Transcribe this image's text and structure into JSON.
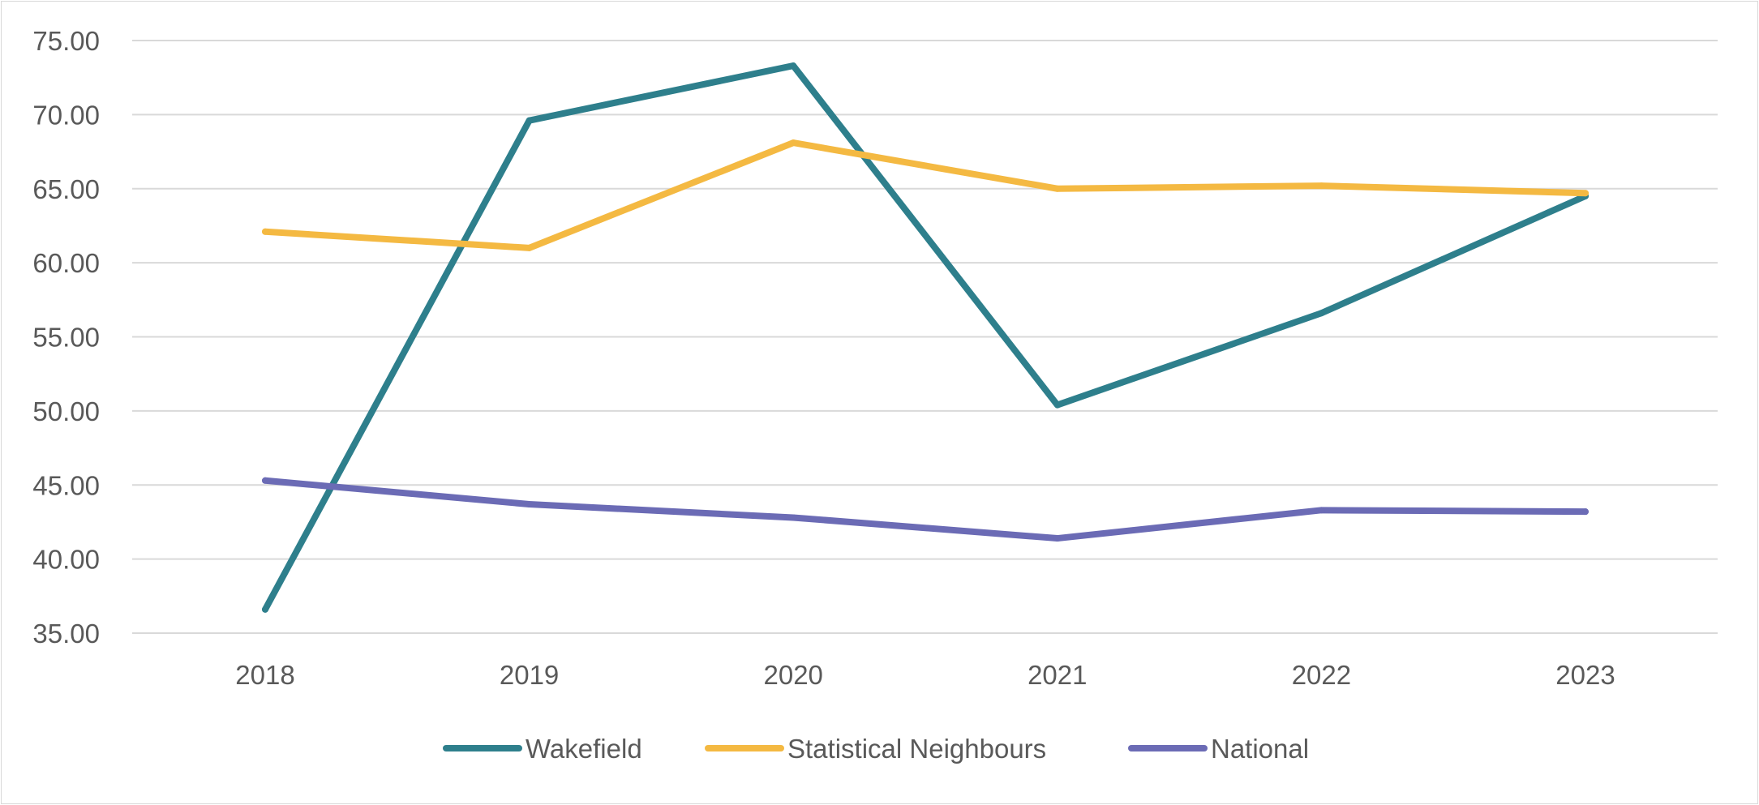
{
  "chart_data": {
    "type": "line",
    "title": "",
    "xlabel": "",
    "ylabel": "",
    "categories": [
      "2018",
      "2019",
      "2020",
      "2021",
      "2022",
      "2023"
    ],
    "ylim": [
      35,
      75
    ],
    "y_tick_labels": [
      "35.00",
      "40.00",
      "45.00",
      "50.00",
      "55.00",
      "60.00",
      "65.00",
      "70.00",
      "75.00"
    ],
    "y_ticks": [
      35,
      40,
      45,
      50,
      55,
      60,
      65,
      70,
      75
    ],
    "grid": true,
    "legend_position": "bottom",
    "series": [
      {
        "name": "Wakefield",
        "color": "#2E7F8C",
        "values": [
          36.6,
          69.6,
          73.3,
          50.4,
          56.6,
          64.5
        ]
      },
      {
        "name": "Statistical Neighbours",
        "color": "#F4B942",
        "values": [
          62.1,
          61.0,
          68.1,
          65.0,
          65.2,
          64.7
        ]
      },
      {
        "name": "National",
        "color": "#6B6BB5",
        "values": [
          45.3,
          43.7,
          42.8,
          41.4,
          43.3,
          43.2
        ]
      }
    ]
  }
}
